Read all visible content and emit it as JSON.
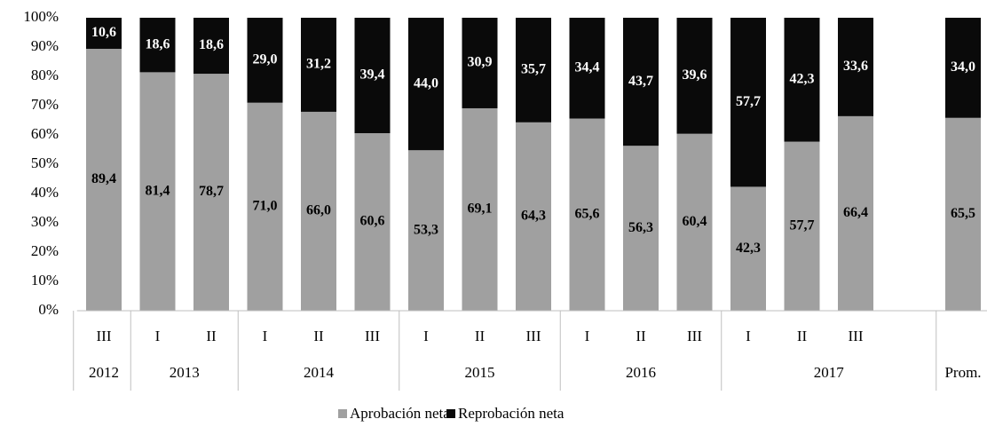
{
  "chart_data": {
    "type": "bar",
    "stacked": "percent",
    "categories": [
      "III",
      "I",
      "II",
      "I",
      "II",
      "III",
      "I",
      "II",
      "III",
      "I",
      "II",
      "III",
      "I",
      "II",
      "III",
      null,
      null
    ],
    "groups": [
      {
        "label": "2012",
        "span": 1
      },
      {
        "label": "2013",
        "span": 2
      },
      {
        "label": "2014",
        "span": 3
      },
      {
        "label": "2015",
        "span": 3
      },
      {
        "label": "2016",
        "span": 3
      },
      {
        "label": "2017",
        "span": 4
      },
      {
        "label": "Prom.",
        "span": 1
      }
    ],
    "series": [
      {
        "name": "Aprobación neta",
        "color": "#a0a0a0",
        "values": [
          89.4,
          81.4,
          78.7,
          71.0,
          66.0,
          60.6,
          53.3,
          69.1,
          64.3,
          65.6,
          56.3,
          60.4,
          42.3,
          57.7,
          66.4,
          null,
          65.5
        ],
        "value_labels": [
          "89,4",
          "81,4",
          "78,7",
          "71,0",
          "66,0",
          "60,6",
          "53,3",
          "69,1",
          "64,3",
          "65,6",
          "56,3",
          "60,4",
          "42,3",
          "57,7",
          "66,4",
          null,
          "65,5"
        ]
      },
      {
        "name": "Reprobación neta",
        "color": "#0a0a0a",
        "values": [
          10.6,
          18.6,
          18.6,
          29.0,
          31.2,
          39.4,
          44.0,
          30.9,
          35.7,
          34.4,
          43.7,
          39.6,
          57.7,
          42.3,
          33.6,
          null,
          34.0
        ],
        "value_labels": [
          "10,6",
          "18,6",
          "18,6",
          "29,0",
          "31,2",
          "39,4",
          "44,0",
          "30,9",
          "35,7",
          "34,4",
          "43,7",
          "39,6",
          "57,7",
          "42,3",
          "33,6",
          null,
          "34,0"
        ]
      }
    ],
    "ylim": [
      0,
      100
    ],
    "yticks": [
      {
        "value": 0,
        "label": "0%"
      },
      {
        "value": 10,
        "label": "10%"
      },
      {
        "value": 20,
        "label": "20%"
      },
      {
        "value": 30,
        "label": "30%"
      },
      {
        "value": 40,
        "label": "40%"
      },
      {
        "value": 50,
        "label": "50%"
      },
      {
        "value": 60,
        "label": "60%"
      },
      {
        "value": 70,
        "label": "70%"
      },
      {
        "value": 80,
        "label": "80%"
      },
      {
        "value": 90,
        "label": "90%"
      },
      {
        "value": 100,
        "label": "100%"
      }
    ],
    "legend": "bottom",
    "grid": false
  }
}
